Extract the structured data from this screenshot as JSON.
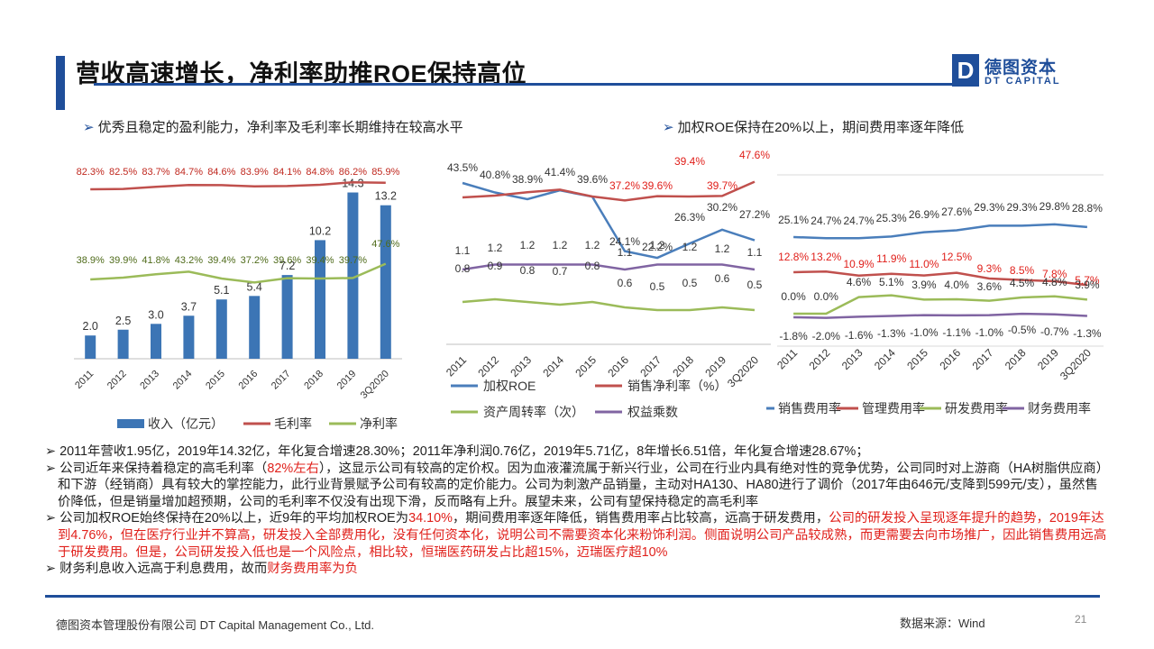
{
  "header": {
    "title": "营收高速增长，净利率助推ROE保持高位",
    "logo_mark": "D",
    "logo_cn": "德图资本",
    "logo_en": "DT CAPITAL"
  },
  "subtitles": {
    "left": "优秀且稳定的盈利能力，净利率及毛利率长期维持在较高水平",
    "right": "加权ROE保持在20%以上，期间费用率逐年降低",
    "marker": "➢"
  },
  "colors": {
    "blue": "#4a7ebb",
    "red": "#c0504d",
    "green": "#9bbb59",
    "purple": "#8064a2",
    "bar": "#3c75b5",
    "accent": "#1f4e9a",
    "highlight": "#e0201b"
  },
  "chart_data": [
    {
      "type": "bar",
      "categories": [
        "2011",
        "2012",
        "2013",
        "2014",
        "2015",
        "2016",
        "2017",
        "2018",
        "2019",
        "3Q2020"
      ],
      "series": [
        {
          "name": "收入（亿元）",
          "type": "bar",
          "values": [
            2.0,
            2.5,
            3.0,
            3.7,
            5.1,
            5.4,
            7.2,
            10.2,
            14.3,
            13.2
          ],
          "labels": [
            "2.0",
            "2.5",
            "3.0",
            "3.7",
            "5.1",
            "5.4",
            "7.2",
            "10.2",
            "14.3",
            "13.2"
          ]
        },
        {
          "name": "毛利率",
          "type": "line",
          "values": [
            82.3,
            82.5,
            83.7,
            84.7,
            84.6,
            83.9,
            84.1,
            84.8,
            86.2,
            85.9
          ],
          "labels": [
            "82.3%",
            "82.5%",
            "83.7%",
            "84.7%",
            "84.6%",
            "83.9%",
            "84.1%",
            "84.8%",
            "86.2%",
            "85.9%"
          ]
        },
        {
          "name": "净利率",
          "type": "line",
          "values": [
            38.9,
            39.9,
            41.8,
            43.2,
            39.4,
            37.2,
            39.6,
            39.4,
            39.7,
            47.6
          ],
          "labels": [
            "38.9%",
            "39.9%",
            "41.8%",
            "43.2%",
            "39.4%",
            "37.2%",
            "39.6%",
            "39.4%",
            "39.7%",
            "47.6%"
          ]
        }
      ]
    },
    {
      "type": "line",
      "categories": [
        "2011",
        "2012",
        "2013",
        "2014",
        "2015",
        "2016",
        "2017",
        "2018",
        "2019",
        "3Q2020"
      ],
      "series": [
        {
          "name": "加权ROE",
          "values": [
            43.5,
            40.8,
            38.9,
            41.4,
            39.6,
            24.1,
            22.2,
            26.3,
            30.2,
            27.2
          ],
          "labels": [
            "43.5%",
            "40.8%",
            "38.9%",
            "41.4%",
            "39.6%",
            "24.1%",
            "22.2%",
            "26.3%",
            "30.2%",
            "27.2%"
          ]
        },
        {
          "name": "销售净利率（%）",
          "values": [
            38.9,
            39.9,
            41.8,
            43.2,
            39.4,
            37.2,
            39.6,
            39.4,
            39.7,
            47.6
          ],
          "labels": [
            "",
            "",
            "",
            "",
            "",
            "37.2%",
            "39.6%",
            "39.4%",
            "39.7%",
            "47.6%"
          ]
        },
        {
          "name": "资产周转率（次）",
          "values": [
            0.8,
            0.9,
            0.8,
            0.7,
            0.8,
            0.6,
            0.5,
            0.5,
            0.6,
            0.5
          ],
          "labels": [
            "0.8",
            "0.9",
            "0.8",
            "0.7",
            "0.8",
            "0.6",
            "0.5",
            "0.5",
            "0.6",
            "0.5"
          ]
        },
        {
          "name": "权益乘数",
          "values": [
            1.1,
            1.2,
            1.2,
            1.2,
            1.2,
            1.1,
            1.2,
            1.2,
            1.2,
            1.1
          ],
          "labels": [
            "1.1",
            "1.2",
            "1.2",
            "1.2",
            "1.2",
            "1.1",
            "1.2",
            "1.2",
            "1.2",
            "1.1"
          ]
        }
      ]
    },
    {
      "type": "line",
      "categories": [
        "2011",
        "2012",
        "2013",
        "2014",
        "2015",
        "2016",
        "2017",
        "2018",
        "2019",
        "3Q2020"
      ],
      "series": [
        {
          "name": "销售费用率",
          "values": [
            25.1,
            24.7,
            24.7,
            25.3,
            26.9,
            27.6,
            29.3,
            29.3,
            29.8,
            28.8
          ],
          "labels": [
            "25.1%",
            "24.7%",
            "24.7%",
            "25.3%",
            "26.9%",
            "27.6%",
            "29.3%",
            "29.3%",
            "29.8%",
            "28.8%"
          ]
        },
        {
          "name": "管理费用率",
          "values": [
            12.8,
            13.2,
            10.9,
            11.9,
            11.0,
            12.5,
            9.3,
            8.5,
            7.8,
            5.7
          ],
          "labels": [
            "12.8%",
            "13.2%",
            "10.9%",
            "11.9%",
            "11.0%",
            "12.5%",
            "9.3%",
            "8.5%",
            "7.8%",
            "5.7%"
          ]
        },
        {
          "name": "研发费用率",
          "values": [
            0.0,
            0.0,
            4.6,
            5.1,
            3.9,
            4.0,
            3.6,
            4.5,
            4.8,
            3.9
          ],
          "labels": [
            "0.0%",
            "0.0%",
            "4.6%",
            "5.1%",
            "3.9%",
            "4.0%",
            "3.6%",
            "4.5%",
            "4.8%",
            "3.9%"
          ]
        },
        {
          "name": "财务费用率",
          "values": [
            -1.8,
            -2.0,
            -1.6,
            -1.3,
            -1.0,
            -1.1,
            -1.0,
            -0.5,
            -0.7,
            -1.3
          ],
          "labels": [
            "-1.8%",
            "-2.0%",
            "-1.6%",
            "-1.3%",
            "-1.0%",
            "-1.1%",
            "-1.0%",
            "-0.5%",
            "-0.7%",
            "-1.3%"
          ]
        }
      ]
    }
  ],
  "bullets": [
    {
      "segments": [
        {
          "t": "2011年营收1.95亿，2019年14.32亿，年化复合增速28.30%；2011年净利润0.76亿，2019年5.71亿，8年增长6.51倍，年化复合增速28.67%；"
        }
      ]
    },
    {
      "segments": [
        {
          "t": "公司近年来保持着稳定的高毛利率（"
        },
        {
          "t": "82%左右",
          "red": true
        },
        {
          "t": "），这显示公司有较高的定价权。因为血液灌流属于新兴行业，公司在行业内具有绝对性的竞争优势，公司同时对上游商（HA树脂供应商）和下游（经销商）具有较大的掌控能力，此行业背景赋予公司有较高的定价能力。公司为刺激产品销量，主动对HA130、HA80进行了调价（2017年由646元/支降到599元/支），虽然售价降低，但是销量增加超预期，公司的毛利率不仅没有出现下滑，反而略有上升。展望未来，公司有望保持稳定的高毛利率"
        }
      ]
    },
    {
      "segments": [
        {
          "t": "公司加权ROE始终保持在20%以上，近9年的平均加权ROE为"
        },
        {
          "t": "34.10%",
          "red": true
        },
        {
          "t": "，期间费用率逐年降低，销售费用率占比较高，远高于研发费用，"
        },
        {
          "t": "公司的研发投入呈现逐年提升的趋势，2019年达到4.76%，但在医疗行业并不算高，研发投入全部费用化，没有任何资本化，说明公司不需要资本化来粉饰利润。侧面说明公司产品较成熟，而更需要去向市场推广，因此销售费用远高于研发费用。但是，公司研发投入低也是一个风险点，相比较，恒瑞医药研发占比超15%，迈瑞医疗超10%",
          "red": true
        }
      ]
    },
    {
      "segments": [
        {
          "t": "财务利息收入远高于利息费用，故而"
        },
        {
          "t": "财务费用率为负",
          "red": true
        }
      ]
    }
  ],
  "footer": {
    "company": "德图资本管理股份有限公司  DT Capital Management  Co., Ltd.",
    "source": "数据来源：Wind",
    "page": "21"
  }
}
